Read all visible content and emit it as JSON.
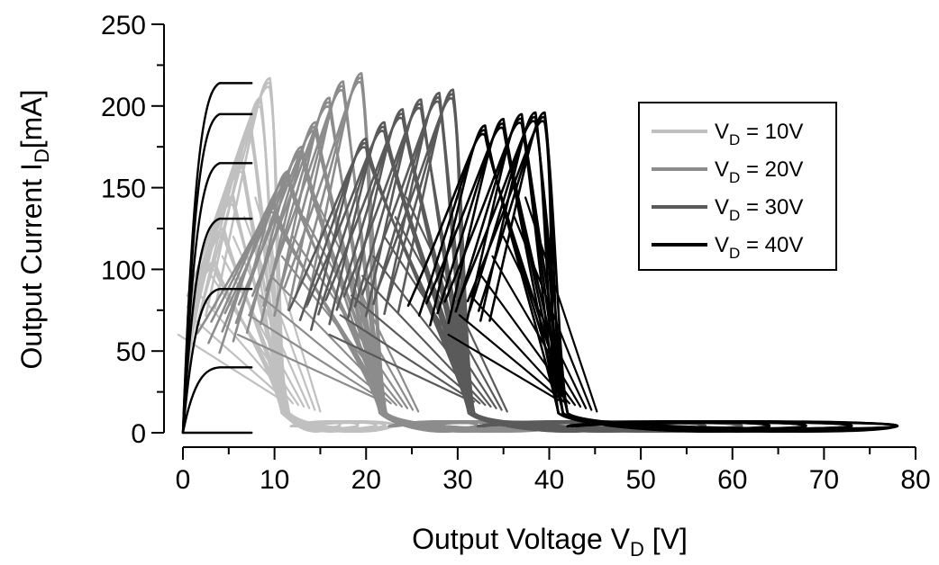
{
  "chart_data": {
    "type": "line",
    "title": "",
    "xlabel": {
      "main": "Output Voltage V",
      "sub": "D",
      "tail": " [V]"
    },
    "ylabel": {
      "main": "Output Current I",
      "sub": "D",
      "tail": "[mA]"
    },
    "xlim": [
      0,
      80
    ],
    "ylim": [
      0,
      250
    ],
    "x_ticks": [
      0,
      10,
      20,
      30,
      40,
      50,
      60,
      70,
      80
    ],
    "y_ticks": [
      0,
      50,
      100,
      150,
      200,
      250
    ],
    "x_tick_labels": [
      "0",
      "10",
      "20",
      "30",
      "40",
      "50",
      "60",
      "70",
      "80"
    ],
    "y_tick_labels": [
      "0",
      "50",
      "100",
      "150",
      "200",
      "250"
    ],
    "grid": false,
    "legend_position": "upper-right",
    "series": [
      {
        "name": "V_D = 10V",
        "legend_label": {
          "main": "V",
          "sub": "D",
          "tail": " = 10V"
        },
        "color": "#c0c0c0",
        "peak_x": [
          3.5,
          4.5,
          5.5,
          6.5,
          7.5,
          8.5,
          9.5
        ],
        "peak_y": [
          105,
          125,
          145,
          165,
          185,
          205,
          217
        ],
        "knee_x": [
          10.8,
          11.0,
          11.2,
          11.4,
          11.6
        ],
        "tail_x_end": [
          17,
          19,
          21,
          22,
          23
        ]
      },
      {
        "name": "V_D = 20V",
        "legend_label": {
          "main": "V",
          "sub": "D",
          "tail": " = 20V"
        },
        "color": "#8c8c8c",
        "peak_x": [
          10,
          11.5,
          13,
          14.5,
          16,
          17.5,
          19.5
        ],
        "peak_y": [
          140,
          160,
          175,
          190,
          205,
          215,
          220
        ],
        "knee_x": [
          21.5,
          21.8,
          22.0,
          22.2
        ],
        "tail_x_end": [
          32,
          35,
          38,
          41
        ]
      },
      {
        "name": "V_D = 30V",
        "legend_label": {
          "main": "V",
          "sub": "D",
          "tail": " = 30V"
        },
        "color": "#5a5a5a",
        "peak_x": [
          20,
          22,
          24,
          26,
          28,
          29.5
        ],
        "peak_y": [
          180,
          190,
          198,
          204,
          208,
          210
        ],
        "knee_x": [
          31.2,
          31.5,
          31.8
        ],
        "tail_x_end": [
          47,
          52,
          57,
          61
        ]
      },
      {
        "name": "V_D = 40V",
        "legend_label": {
          "main": "V",
          "sub": "D",
          "tail": " = 40V"
        },
        "color": "#000000",
        "peak_x": [
          33,
          35,
          37,
          38.5,
          39.5
        ],
        "peak_y": [
          188,
          192,
          195,
          196,
          196
        ],
        "knee_x": [
          41,
          41.5,
          42
        ],
        "tail_x_end": [
          64,
          68,
          73,
          78
        ]
      }
    ],
    "output_curves_0_to_8V": {
      "color": "#000000",
      "x_end": 7.5,
      "y_saturation": [
        0,
        40,
        88,
        131,
        165,
        195,
        214
      ]
    }
  }
}
